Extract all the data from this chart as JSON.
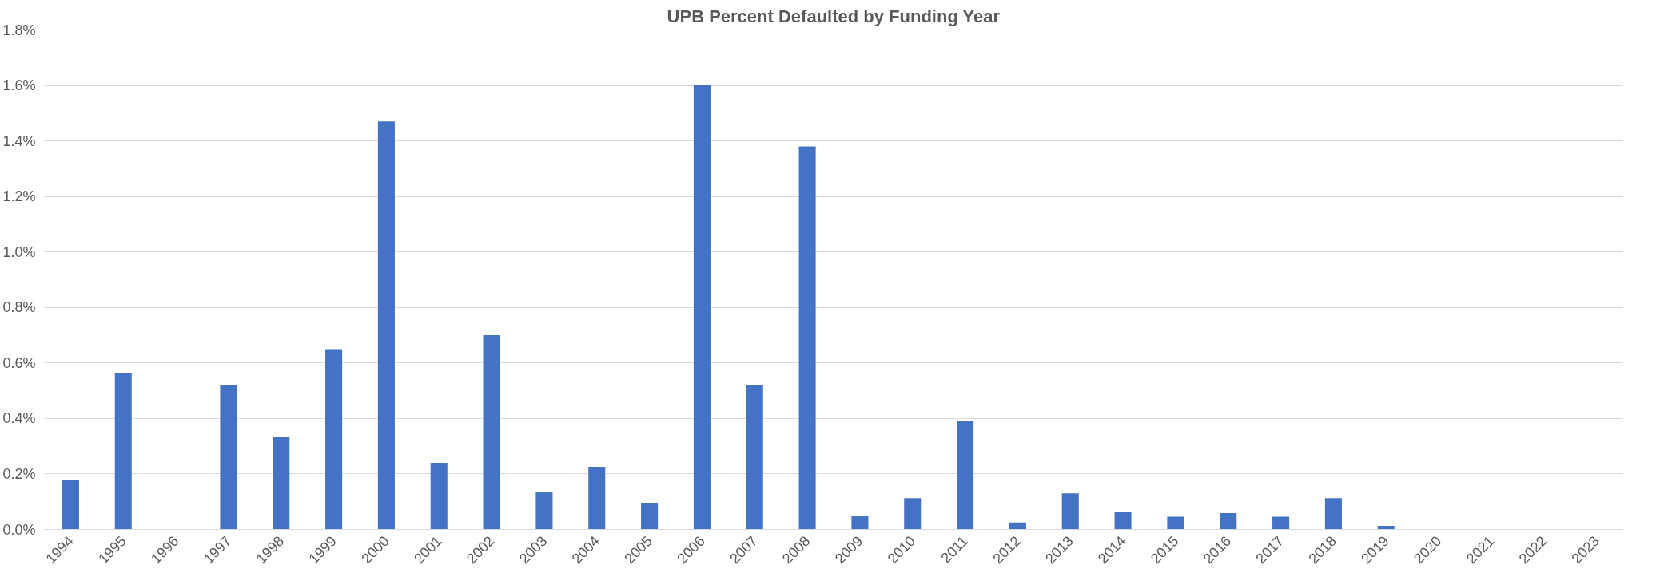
{
  "chart_data": {
    "type": "bar",
    "title": "UPB Percent Defaulted by Funding Year",
    "categories": [
      "1994",
      "1995",
      "1996",
      "1997",
      "1998",
      "1999",
      "2000",
      "2001",
      "2002",
      "2003",
      "2004",
      "2005",
      "2006",
      "2007",
      "2008",
      "2009",
      "2010",
      "2011",
      "2012",
      "2013",
      "2014",
      "2015",
      "2016",
      "2017",
      "2018",
      "2019",
      "2020",
      "2021",
      "2022",
      "2023"
    ],
    "values": [
      0.18,
      0.565,
      0,
      0.52,
      0.335,
      0.65,
      1.47,
      0.24,
      0.7,
      0.134,
      0.226,
      0.096,
      1.6,
      0.52,
      1.38,
      0.05,
      0.113,
      0.39,
      0.025,
      0.13,
      0.063,
      0.046,
      0.059,
      0.046,
      0.113,
      0.013,
      0,
      0,
      0,
      0
    ],
    "color": "#4472c4",
    "ylim": [
      0,
      1.8
    ],
    "yticks": [
      {
        "value": 0,
        "label": "0.0%"
      },
      {
        "value": 0.2,
        "label": "0.2%"
      },
      {
        "value": 0.4,
        "label": "0.4%"
      },
      {
        "value": 0.6,
        "label": "0.6%"
      },
      {
        "value": 0.8,
        "label": "0.8%"
      },
      {
        "value": 1.0,
        "label": "1.0%"
      },
      {
        "value": 1.2,
        "label": "1.2%"
      },
      {
        "value": 1.4,
        "label": "1.4%"
      },
      {
        "value": 1.6,
        "label": "1.6%"
      },
      {
        "value": 1.8,
        "label": "1.8%"
      }
    ],
    "grid": "y"
  }
}
